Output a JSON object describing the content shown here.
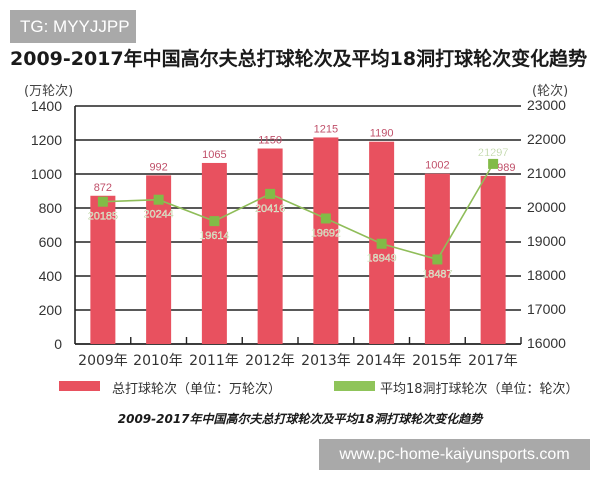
{
  "watermark_top": "TG: MYYJJPP",
  "title": "2009-2017年中国高尔夫总打球轮次及平均18洞打球轮次变化趋势",
  "left_axis": {
    "unit": "(万轮次)",
    "ticks": [
      "1400",
      "1200",
      "1000",
      "800",
      "600",
      "400",
      "200",
      "0"
    ]
  },
  "right_axis": {
    "unit": "(轮次)",
    "ticks": [
      "23000",
      "22000",
      "21000",
      "20000",
      "19000",
      "18000",
      "17000",
      "16000"
    ]
  },
  "x_labels": [
    "2009年",
    "2010年",
    "2011年",
    "2012年",
    "2013年",
    "2014年",
    "2015年",
    "2017年"
  ],
  "legend": {
    "bars_label": "总打球轮次（单位：万轮次）",
    "line_label": "平均18洞打球轮次（单位：轮次）"
  },
  "caption": "2009-2017年中国高尔夫总打球轮次及平均18洞打球轮次变化趋势",
  "watermark_bottom": "www.pc-home-kaiyunsports.com",
  "colors": {
    "bar": "#e8515f",
    "line": "#8fbd59",
    "marker": "#82bb47",
    "bar_label": "#c0506a",
    "line_label": "#a9c98a"
  },
  "chart_data": {
    "type": "bar+line",
    "title": "2009-2017年中国高尔夫总打球轮次及平均18洞打球轮次变化趋势",
    "categories": [
      "2009年",
      "2010年",
      "2011年",
      "2012年",
      "2013年",
      "2014年",
      "2015年",
      "2017年"
    ],
    "series": [
      {
        "name": "总打球轮次（单位：万轮次）",
        "type": "bar",
        "axis": "left",
        "values": [
          872,
          992,
          1065,
          1150,
          1215,
          1190,
          1002,
          989
        ]
      },
      {
        "name": "平均18洞打球轮次（单位：轮次）",
        "type": "line",
        "axis": "right",
        "values": [
          20185,
          20244,
          19614,
          20416,
          19692,
          18949,
          18487,
          21297
        ]
      }
    ],
    "ylabel": "(万轮次)",
    "ylabel_right": "(轮次)",
    "ylim": [
      0,
      1400
    ],
    "ylim_right": [
      16000,
      23000
    ],
    "grid": true,
    "legend_position": "bottom"
  }
}
